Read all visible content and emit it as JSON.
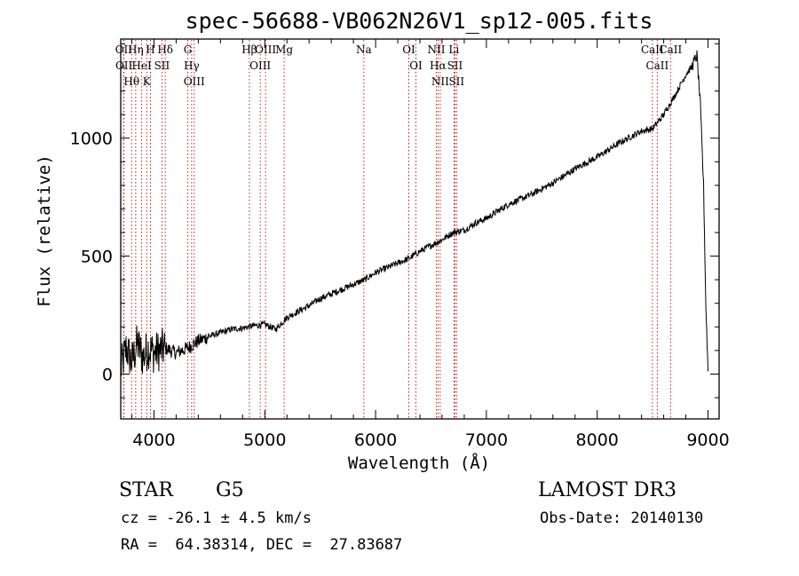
{
  "chart_data": {
    "type": "line",
    "title": "spec-56688-VB062N26V1_sp12-005.fits",
    "xlabel": "Wavelength (Å)",
    "ylabel": "Flux (relative)",
    "xlim": [
      3700,
      9100
    ],
    "ylim": [
      -190,
      1420
    ],
    "xticks": [
      4000,
      5000,
      6000,
      7000,
      8000,
      9000
    ],
    "yticks": [
      0,
      500,
      1000
    ],
    "x_tick_labels": [
      "4000",
      "5000",
      "6000",
      "7000",
      "8000",
      "9000"
    ],
    "y_tick_labels": [
      "0",
      "500",
      "1000"
    ],
    "spectrum_x": [
      3700,
      3750,
      3800,
      3850,
      3900,
      3950,
      4000,
      4100,
      4200,
      4300,
      4400,
      4500,
      4600,
      4700,
      4800,
      4900,
      5000,
      5100,
      5200,
      5300,
      5400,
      5500,
      5600,
      5700,
      5800,
      5900,
      6000,
      6100,
      6200,
      6300,
      6400,
      6500,
      6600,
      6700,
      6800,
      6900,
      7000,
      7200,
      7400,
      7600,
      7800,
      8000,
      8200,
      8400,
      8500,
      8600,
      8700,
      8800,
      8850,
      8900,
      8930,
      8960,
      8980,
      9000
    ],
    "spectrum_y": [
      20,
      110,
      50,
      130,
      70,
      110,
      90,
      110,
      90,
      110,
      140,
      160,
      175,
      190,
      195,
      205,
      210,
      190,
      240,
      265,
      290,
      320,
      340,
      360,
      380,
      400,
      430,
      450,
      470,
      490,
      520,
      545,
      570,
      600,
      610,
      640,
      660,
      720,
      760,
      810,
      870,
      920,
      980,
      1030,
      1040,
      1100,
      1180,
      1270,
      1300,
      1350,
      1150,
      800,
      300,
      20
    ],
    "spectral_lines": [
      {
        "label": "Hθ",
        "x": 3798
      },
      {
        "label": "OII",
        "x": 3727
      },
      {
        "label": "OII",
        "x": 3729
      },
      {
        "label": "HeI",
        "x": 3889
      },
      {
        "label": "K",
        "x": 3934
      },
      {
        "label": "H",
        "x": 3968
      },
      {
        "label": "Hη",
        "x": 3835
      },
      {
        "label": "SII",
        "x": 4072
      },
      {
        "label": "Hδ",
        "x": 4102
      },
      {
        "label": "OIII",
        "x": 4363
      },
      {
        "label": "Hγ",
        "x": 4340
      },
      {
        "label": "G",
        "x": 4305
      },
      {
        "label": "Hβ",
        "x": 4861
      },
      {
        "label": "OIII",
        "x": 5007
      },
      {
        "label": "OIII",
        "x": 4959
      },
      {
        "label": "Mg",
        "x": 5175
      },
      {
        "label": "Na",
        "x": 5894
      },
      {
        "label": "OI",
        "x": 6300
      },
      {
        "label": "OI",
        "x": 6364
      },
      {
        "label": "Hα",
        "x": 6563
      },
      {
        "label": "NII",
        "x": 6548
      },
      {
        "label": "NII",
        "x": 6583
      },
      {
        "label": "SII",
        "x": 6716
      },
      {
        "label": "Li",
        "x": 6707
      },
      {
        "label": "SII",
        "x": 6731
      },
      {
        "label": "CaII",
        "x": 8542
      },
      {
        "label": "CaII",
        "x": 8498
      },
      {
        "label": "CaII",
        "x": 8662
      }
    ]
  },
  "info": {
    "object_class": "STAR",
    "subclass": "G5",
    "survey": "LAMOST DR3",
    "cz": "cz = -26.1 ± 4.5 km/s",
    "obs_date": "Obs-Date: 20140130",
    "radec": "RA =  64.38314, DEC =  27.83687"
  },
  "colors": {
    "line_marker": "#cc0000",
    "spectrum": "#000000",
    "axis": "#000000"
  }
}
